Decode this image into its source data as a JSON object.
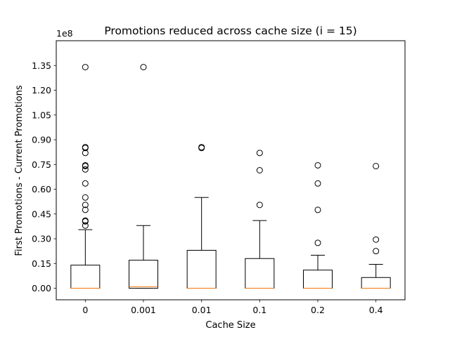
{
  "chart_data": {
    "type": "boxplot",
    "title": "Promotions reduced across cache size (i = 15)",
    "xlabel": "Cache Size",
    "ylabel": "First Promotions - Current Promotions",
    "y_offset_label": "1e8",
    "y_scale": 100000000,
    "ylim": [
      -0.07,
      1.5
    ],
    "y_ticks": [
      0.0,
      0.15,
      0.3,
      0.45,
      0.6,
      0.75,
      0.9,
      1.05,
      1.2,
      1.35
    ],
    "y_tick_labels": [
      "0.00",
      "0.15",
      "0.30",
      "0.45",
      "0.60",
      "0.75",
      "0.90",
      "1.05",
      "1.20",
      "1.35"
    ],
    "categories": [
      "0",
      "0.001",
      "0.01",
      "0.1",
      "0.2",
      "0.4"
    ],
    "boxes": [
      {
        "whisker_low": 0.0,
        "q1": 0.0,
        "median": 0.0,
        "q3": 0.14,
        "whisker_high": 0.355,
        "outliers": [
          1.34,
          0.855,
          0.85,
          0.82,
          0.745,
          0.74,
          0.72,
          0.635,
          0.55,
          0.505,
          0.475,
          0.41,
          0.405,
          0.38
        ]
      },
      {
        "whisker_low": 0.0,
        "q1": 0.0,
        "median": 0.01,
        "q3": 0.17,
        "whisker_high": 0.38,
        "outliers": [
          1.34
        ]
      },
      {
        "whisker_low": 0.0,
        "q1": 0.0,
        "median": 0.0,
        "q3": 0.23,
        "whisker_high": 0.55,
        "outliers": [
          0.855,
          0.85
        ]
      },
      {
        "whisker_low": 0.0,
        "q1": 0.0,
        "median": 0.0,
        "q3": 0.18,
        "whisker_high": 0.41,
        "outliers": [
          0.82,
          0.715,
          0.505
        ]
      },
      {
        "whisker_low": 0.0,
        "q1": 0.0,
        "median": 0.0,
        "q3": 0.11,
        "whisker_high": 0.2,
        "outliers": [
          0.745,
          0.635,
          0.475,
          0.275
        ]
      },
      {
        "whisker_low": 0.0,
        "q1": 0.0,
        "median": 0.0,
        "q3": 0.065,
        "whisker_high": 0.145,
        "outliers": [
          0.74,
          0.295,
          0.225
        ]
      }
    ],
    "colors": {
      "box": "#000000",
      "median": "#ff7f0e",
      "outlier_edge": "#000000"
    }
  }
}
